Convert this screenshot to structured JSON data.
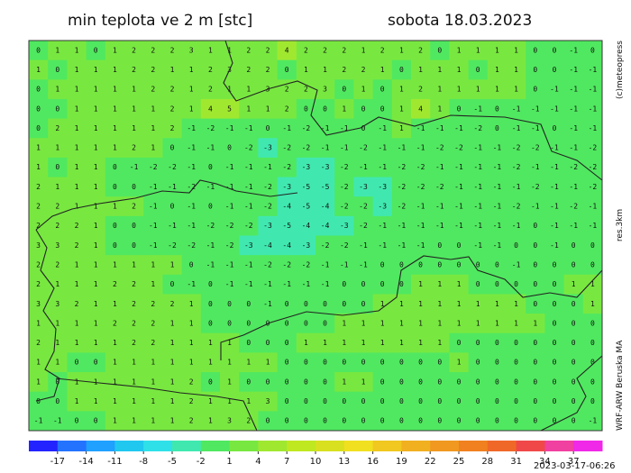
{
  "header": {
    "title": "min teplota ve 2 m [stc]",
    "date": "sobota 18.03.2023"
  },
  "side_labels": {
    "copyright": "(c)meteopress",
    "resolution": "res.3km",
    "model": "WRF-ARW Beruska MA"
  },
  "timestamp": "2023-03-17-06:26",
  "colorbar": {
    "min": -20,
    "max": 40,
    "colors": [
      "#2323ff",
      "#2373ff",
      "#20a0ff",
      "#20c8f0",
      "#30e0e8",
      "#40e8b0",
      "#50e860",
      "#78e840",
      "#a0e830",
      "#c0e820",
      "#d8e020",
      "#f0e020",
      "#f0c820",
      "#f0b020",
      "#f09820",
      "#f08020",
      "#f06828",
      "#f04848",
      "#f040a0",
      "#f028e8"
    ],
    "ticks": [
      -17,
      -14,
      -11,
      -8,
      -5,
      -2,
      1,
      4,
      7,
      10,
      13,
      16,
      19,
      22,
      25,
      28,
      31,
      34,
      37
    ]
  },
  "map": {
    "grid": [
      [
        0,
        1,
        1,
        0,
        1,
        2,
        2,
        2,
        3,
        1,
        1,
        2,
        2,
        4,
        2,
        2,
        2,
        1,
        2,
        1,
        2,
        0,
        1,
        1,
        1,
        1,
        0,
        0,
        -1,
        0
      ],
      [
        1,
        0,
        1,
        1,
        1,
        2,
        2,
        1,
        1,
        2,
        3,
        2,
        2,
        0,
        1,
        1,
        2,
        2,
        1,
        0,
        1,
        1,
        1,
        0,
        1,
        1,
        0,
        0,
        -1,
        -1
      ],
      [
        0,
        1,
        1,
        1,
        1,
        1,
        2,
        2,
        1,
        2,
        1,
        1,
        3,
        2,
        2,
        3,
        0,
        1,
        0,
        1,
        2,
        1,
        1,
        1,
        1,
        1,
        0,
        -1,
        -1,
        -1
      ],
      [
        0,
        0,
        1,
        1,
        1,
        1,
        1,
        2,
        1,
        4,
        5,
        1,
        1,
        2,
        0,
        0,
        1,
        0,
        0,
        1,
        4,
        1,
        0,
        -1,
        0,
        -1,
        -1,
        -1,
        -1,
        -1
      ],
      [
        0,
        2,
        1,
        1,
        1,
        1,
        1,
        2,
        -1,
        -2,
        -1,
        -1,
        0,
        -1,
        -2,
        -1,
        -1,
        0,
        -1,
        1,
        -1,
        -1,
        -1,
        -2,
        0,
        -1,
        -1,
        0,
        -1,
        -1
      ],
      [
        1,
        1,
        1,
        1,
        1,
        2,
        1,
        0,
        -1,
        -1,
        0,
        -2,
        -3,
        -2,
        -2,
        -1,
        -1,
        -2,
        -1,
        -1,
        -1,
        -2,
        -2,
        -1,
        -1,
        -2,
        -2,
        -1,
        -1,
        -2
      ],
      [
        1,
        0,
        1,
        1,
        0,
        -1,
        -2,
        -2,
        -1,
        0,
        -1,
        -1,
        -1,
        -2,
        -3,
        -3,
        -2,
        -1,
        -1,
        -2,
        -2,
        -1,
        -1,
        -1,
        -1,
        -2,
        -1,
        -1,
        -2,
        -2
      ],
      [
        2,
        1,
        1,
        1,
        0,
        0,
        -1,
        -1,
        -2,
        -1,
        -1,
        -1,
        -2,
        -3,
        -5,
        -5,
        -2,
        -3,
        -3,
        -2,
        -2,
        -2,
        -1,
        -1,
        -1,
        -1,
        -2,
        -1,
        -1,
        -2
      ],
      [
        2,
        2,
        1,
        1,
        1,
        2,
        -1,
        0,
        -1,
        0,
        -1,
        -1,
        -2,
        -4,
        -5,
        -4,
        -2,
        -2,
        -3,
        -2,
        -1,
        -1,
        -1,
        -1,
        -1,
        -2,
        -1,
        -1,
        -2,
        -1
      ],
      [
        2,
        2,
        2,
        1,
        0,
        0,
        -1,
        -1,
        -1,
        -2,
        -2,
        -2,
        -3,
        -5,
        -4,
        -4,
        -3,
        -2,
        -1,
        -1,
        -1,
        -1,
        -1,
        -1,
        -1,
        -1,
        0,
        -1,
        -1,
        -1
      ],
      [
        3,
        3,
        2,
        1,
        0,
        0,
        -1,
        -2,
        -2,
        -1,
        -2,
        -3,
        -4,
        -4,
        -3,
        -2,
        -2,
        -1,
        -1,
        -1,
        -1,
        0,
        0,
        -1,
        -1,
        0,
        0,
        -1,
        0,
        0
      ],
      [
        2,
        2,
        1,
        1,
        1,
        1,
        1,
        1,
        0,
        -1,
        -1,
        -1,
        -2,
        -2,
        -2,
        -1,
        -1,
        -1,
        0,
        0,
        0,
        0,
        0,
        0,
        0,
        -1,
        0,
        0,
        0,
        0
      ],
      [
        2,
        1,
        1,
        1,
        2,
        2,
        1,
        0,
        -1,
        0,
        -1,
        -1,
        -1,
        -1,
        -1,
        -1,
        0,
        0,
        0,
        0,
        1,
        1,
        1,
        0,
        0,
        0,
        0,
        0,
        1,
        1
      ],
      [
        3,
        3,
        2,
        1,
        1,
        2,
        2,
        2,
        1,
        0,
        0,
        0,
        -1,
        0,
        0,
        0,
        0,
        0,
        1,
        1,
        1,
        1,
        1,
        1,
        1,
        1,
        0,
        0,
        0,
        1
      ],
      [
        1,
        1,
        1,
        1,
        2,
        2,
        2,
        1,
        1,
        0,
        0,
        0,
        0,
        0,
        0,
        0,
        1,
        1,
        1,
        1,
        1,
        1,
        1,
        1,
        1,
        1,
        1,
        0,
        0,
        0
      ],
      [
        2,
        1,
        1,
        1,
        1,
        2,
        2,
        1,
        1,
        1,
        1,
        0,
        0,
        0,
        1,
        1,
        1,
        1,
        1,
        1,
        1,
        1,
        0,
        0,
        0,
        0,
        0,
        0,
        0,
        0
      ],
      [
        1,
        1,
        0,
        0,
        1,
        1,
        1,
        1,
        1,
        1,
        1,
        1,
        1,
        0,
        0,
        0,
        0,
        0,
        0,
        0,
        0,
        0,
        1,
        0,
        0,
        0,
        0,
        0,
        0,
        0
      ],
      [
        1,
        0,
        1,
        1,
        1,
        1,
        1,
        1,
        2,
        0,
        1,
        0,
        0,
        0,
        0,
        0,
        1,
        1,
        0,
        0,
        0,
        0,
        0,
        0,
        0,
        0,
        0,
        0,
        0,
        0
      ],
      [
        0,
        0,
        1,
        1,
        1,
        1,
        1,
        1,
        2,
        1,
        1,
        1,
        3,
        0,
        0,
        0,
        0,
        0,
        0,
        0,
        0,
        0,
        0,
        0,
        0,
        0,
        0,
        0,
        0,
        0
      ],
      [
        -1,
        -1,
        0,
        0,
        1,
        1,
        1,
        1,
        2,
        1,
        3,
        2,
        0,
        0,
        0,
        0,
        0,
        0,
        0,
        0,
        0,
        0,
        0,
        0,
        0,
        0,
        0,
        0,
        0,
        -1
      ]
    ]
  }
}
